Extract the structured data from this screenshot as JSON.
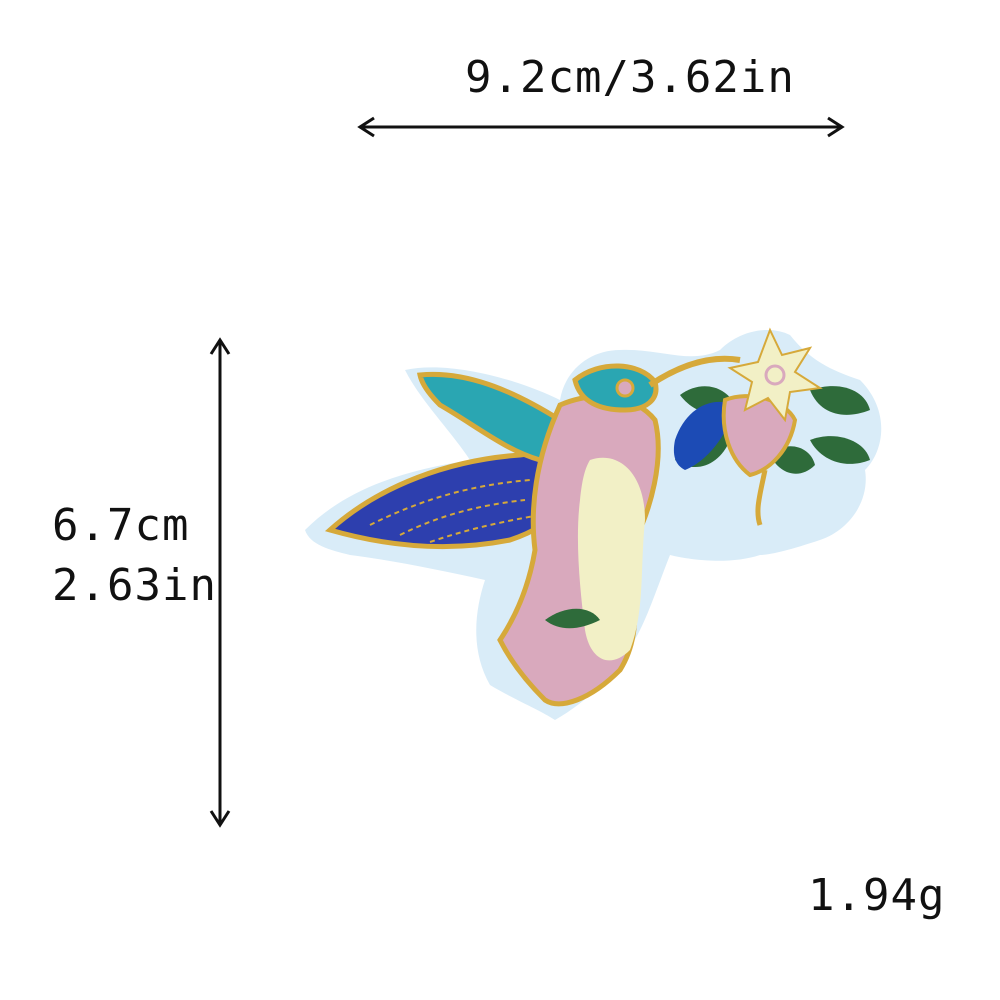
{
  "dimensions": {
    "width_label": "9.2cm/3.62in",
    "height_cm": "6.7cm",
    "height_in": "2.63in"
  },
  "weight": "1.94g",
  "colors": {
    "backing": "#d9ecf8",
    "gold": "#d6a93a",
    "blue_wing": "#2d3fae",
    "teal": "#2aa6b2",
    "pink": "#d9a9bd",
    "cream": "#f2f0c6",
    "green": "#2e6b3a",
    "flower_blue": "#1c4bb5"
  },
  "icons": {
    "width_arrow": "double-arrow-horizontal",
    "height_arrow": "double-arrow-vertical",
    "product": "hummingbird-embroidered-patch"
  }
}
